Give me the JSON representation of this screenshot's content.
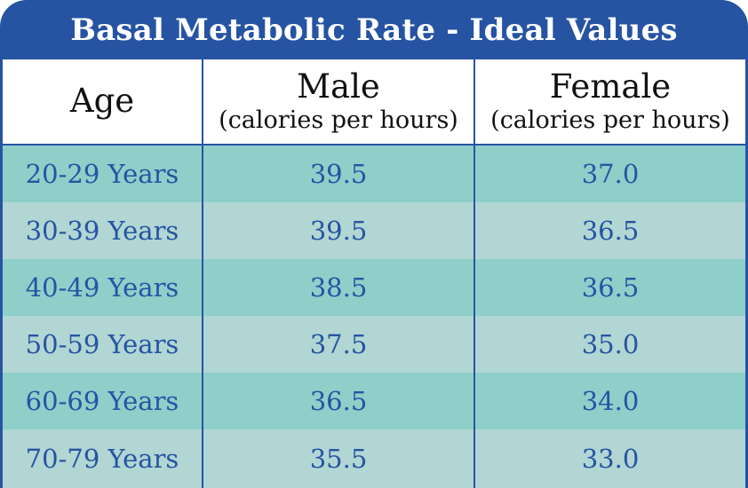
{
  "title": "Basal Metabolic Rate - Ideal Values",
  "header": {
    "age": "Age",
    "male": "Male",
    "male_sub": "(calories per hours)",
    "female": "Female",
    "female_sub": "(calories per hours)"
  },
  "rows": [
    {
      "age": "20-29 Years",
      "male": "39.5",
      "female": "37.0"
    },
    {
      "age": "30-39 Years",
      "male": "39.5",
      "female": "36.5"
    },
    {
      "age": "40-49 Years",
      "male": "38.5",
      "female": "36.5"
    },
    {
      "age": "50-59 Years",
      "male": "37.5",
      "female": "35.0"
    },
    {
      "age": "60-69 Years",
      "male": "36.5",
      "female": "34.0"
    },
    {
      "age": "70-79 Years",
      "male": "35.5",
      "female": "33.0"
    }
  ],
  "colors": {
    "brand_blue": "#2654a3",
    "row_teal_dark": "#8ecfca",
    "row_teal_light": "#b1d6d3",
    "header_bg": "#ffffff"
  }
}
